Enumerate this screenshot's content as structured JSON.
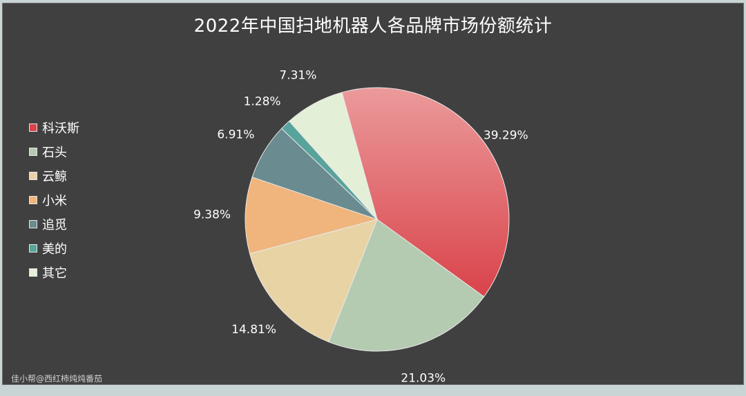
{
  "chart_data": {
    "type": "pie",
    "title": "2022年中国扫地机器人各品牌市场份额统计",
    "legend_position": "left",
    "slices": [
      {
        "name": "科沃斯",
        "value": 39.29,
        "label": "39.29%",
        "color": "#d9434a",
        "color_light": "#eb9a9b"
      },
      {
        "name": "石头",
        "value": 21.03,
        "label": "21.03%",
        "color": "#b5cbb1"
      },
      {
        "name": "云鲸",
        "value": 14.81,
        "label": "14.81%",
        "color": "#e8d3a5"
      },
      {
        "name": "小米",
        "value": 9.38,
        "label": "9.38%",
        "color": "#efb57c"
      },
      {
        "name": "追觅",
        "value": 6.91,
        "label": "6.91%",
        "color": "#6a8b8f"
      },
      {
        "name": "美的",
        "value": 1.28,
        "label": "1.28%",
        "color": "#58a39b"
      },
      {
        "name": "其它",
        "value": 7.31,
        "label": "7.31%",
        "color": "#e4efd8"
      }
    ]
  },
  "watermark": "佳小帮@西红柿炖炖番茄"
}
